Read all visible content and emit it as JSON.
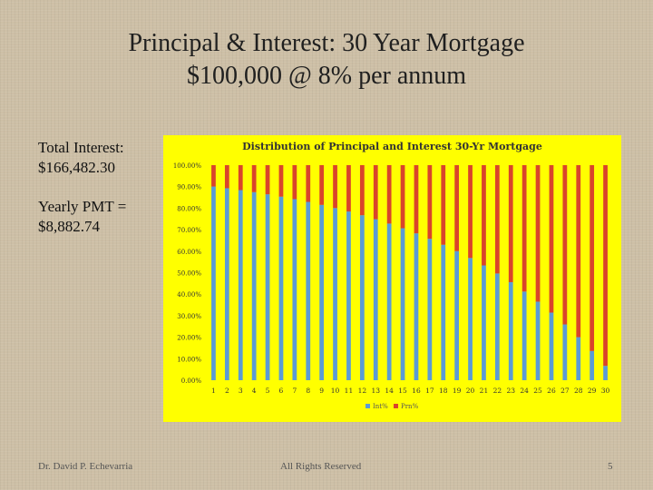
{
  "slide": {
    "title_line1": "Principal & Interest: 30 Year Mortgage",
    "title_line2": "$100,000 @ 8% per annum",
    "total_interest_label": "Total Interest:",
    "total_interest_value": "$166,482.30",
    "yearly_pmt_label": "Yearly PMT =",
    "yearly_pmt_value": "$8,882.74",
    "footer_author": "Dr. David P. Echevarria",
    "footer_rights": "All Rights Reserved",
    "page_number": "5"
  },
  "colors": {
    "chart_background": "#ffff00",
    "interest_series": "#5b9bd5",
    "principal_series": "#d9442b"
  },
  "chart_data": {
    "type": "bar",
    "stacked": "percent",
    "title": "Distribution of Principal and Interest 30-Yr Mortgage",
    "categories": [
      "1",
      "2",
      "3",
      "4",
      "5",
      "6",
      "7",
      "8",
      "9",
      "10",
      "11",
      "12",
      "13",
      "14",
      "15",
      "16",
      "17",
      "18",
      "19",
      "20",
      "21",
      "22",
      "23",
      "24",
      "25",
      "26",
      "27",
      "28",
      "29",
      "30"
    ],
    "series": [
      {
        "name": "Int%",
        "values": [
          90.06,
          89.26,
          88.39,
          87.46,
          86.45,
          85.36,
          84.18,
          82.91,
          81.53,
          80.05,
          78.45,
          76.72,
          74.85,
          72.83,
          70.65,
          68.29,
          65.75,
          63.0,
          60.03,
          56.83,
          53.37,
          49.63,
          45.59,
          41.23,
          36.52,
          31.44,
          25.94,
          20.01,
          13.6,
          6.68
        ]
      },
      {
        "name": "Prn%",
        "values": [
          9.94,
          10.74,
          11.61,
          12.54,
          13.55,
          14.64,
          15.82,
          17.09,
          18.47,
          19.95,
          21.55,
          23.28,
          25.15,
          27.17,
          29.35,
          31.71,
          34.25,
          37.0,
          39.97,
          43.17,
          46.63,
          50.37,
          54.41,
          58.77,
          63.48,
          68.56,
          74.06,
          79.99,
          86.4,
          93.32
        ]
      }
    ],
    "yticks": [
      "0.00%",
      "10.00%",
      "20.00%",
      "30.00%",
      "40.00%",
      "50.00%",
      "60.00%",
      "70.00%",
      "80.00%",
      "90.00%",
      "100.00%"
    ],
    "ylim": [
      0,
      100
    ],
    "grid": false,
    "legend": "bottom"
  }
}
